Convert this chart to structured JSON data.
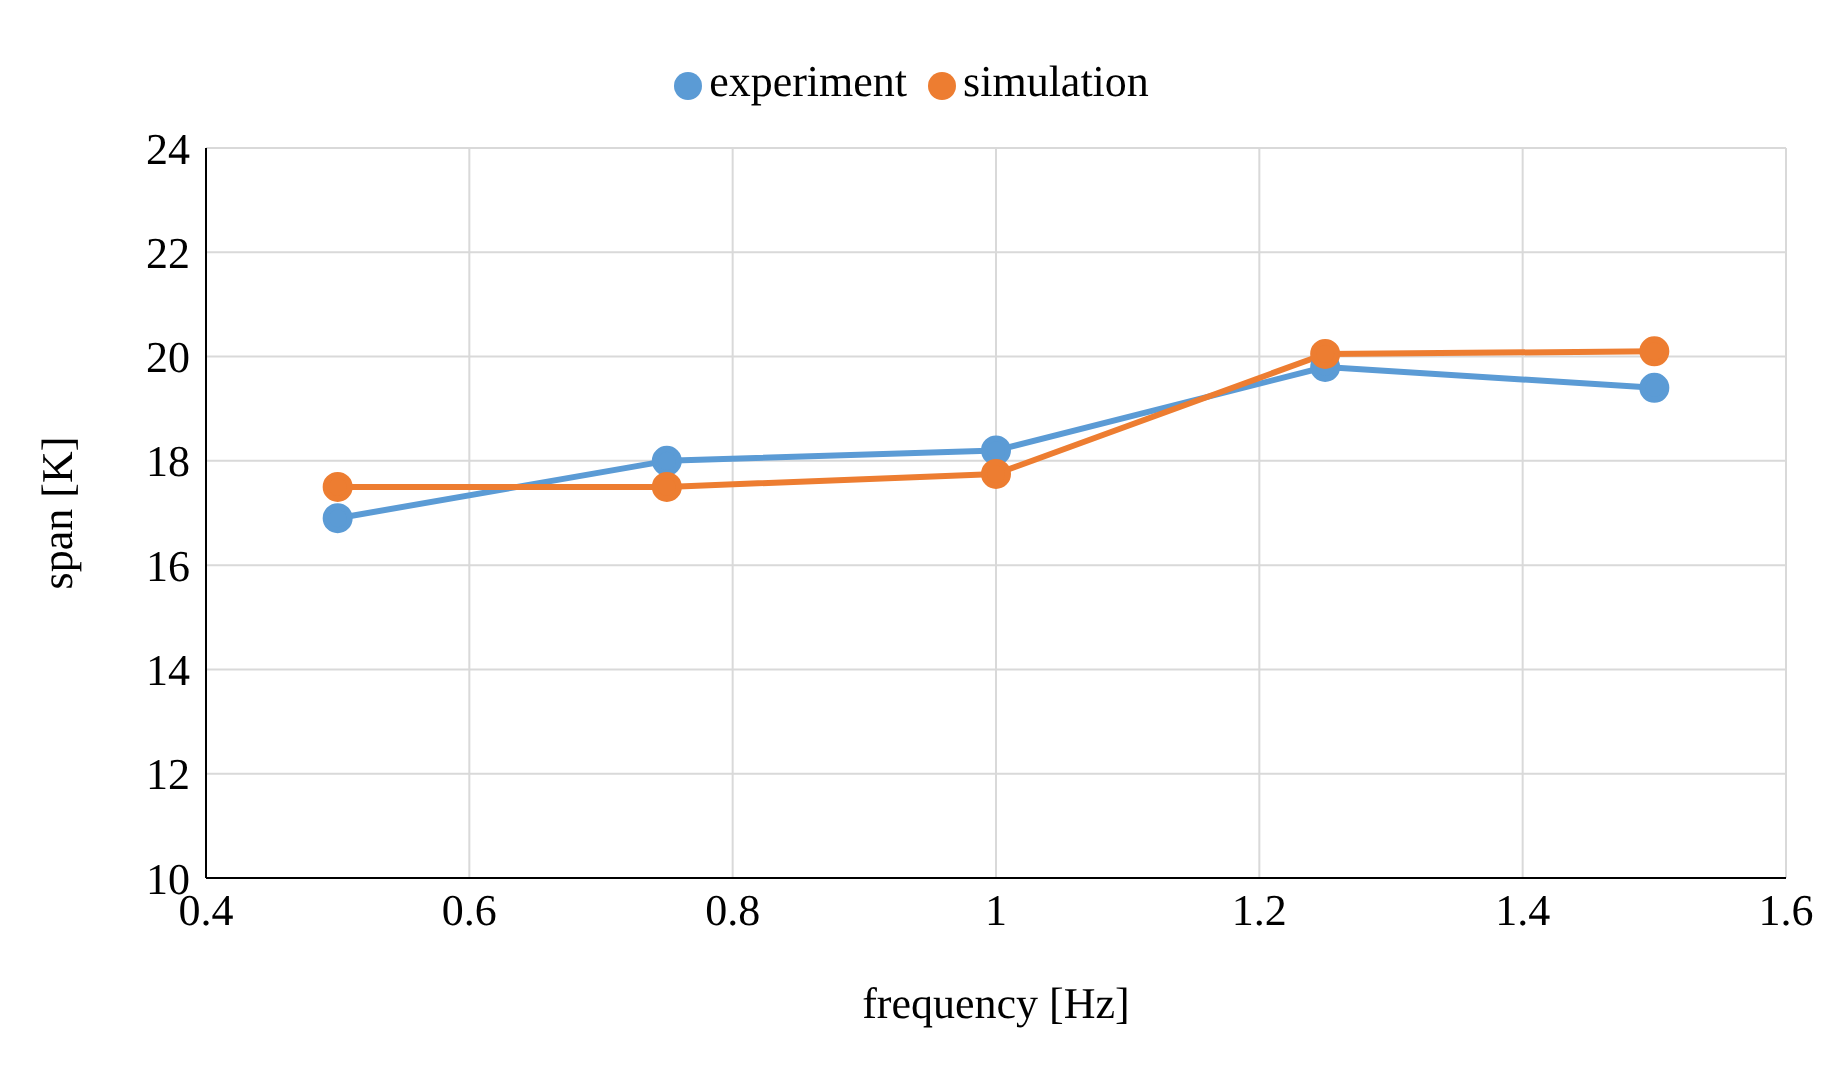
{
  "chart_data": {
    "type": "line",
    "xlabel": "frequency [Hz]",
    "ylabel": "span [K]",
    "x": [
      0.5,
      0.75,
      1,
      1.25,
      1.5
    ],
    "series": [
      {
        "name": "experiment",
        "color": "#5b9bd5",
        "values": [
          16.9,
          18.0,
          18.2,
          19.8,
          19.4
        ]
      },
      {
        "name": "simulation",
        "color": "#ed7d31",
        "values": [
          17.5,
          17.5,
          17.75,
          20.05,
          20.1
        ]
      }
    ],
    "xlim": [
      0.4,
      1.6
    ],
    "xticks": [
      0.4,
      0.6,
      0.8,
      1,
      1.2,
      1.4,
      1.6
    ],
    "ylim": [
      10,
      24
    ],
    "yticks": [
      10,
      12,
      14,
      16,
      18,
      20,
      22,
      24
    ],
    "grid": true,
    "legend": "top",
    "marker": "circle",
    "line_style": "solid"
  }
}
